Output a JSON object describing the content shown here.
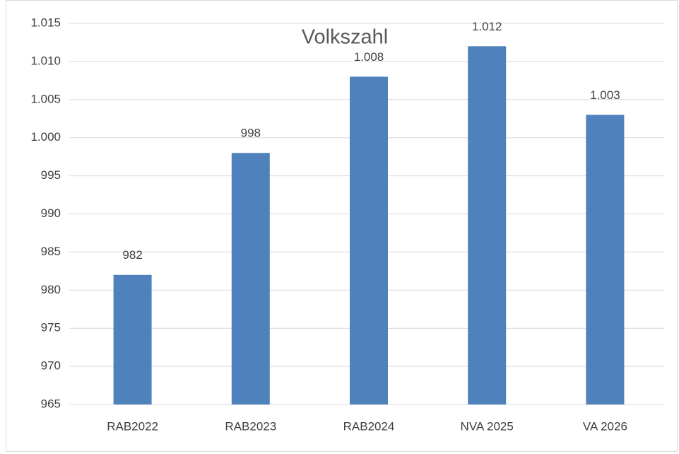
{
  "chart_data": {
    "type": "bar",
    "title": "Volkszahl",
    "categories": [
      "RAB2022",
      "RAB2023",
      "RAB2024",
      "NVA 2025",
      "VA 2026"
    ],
    "values": [
      982,
      998,
      1008,
      1012,
      1003
    ],
    "value_labels": [
      "982",
      "998",
      "1.008",
      "1.012",
      "1.003"
    ],
    "color": "#4f81bd",
    "ylim": [
      965,
      1015
    ],
    "yticks": [
      965,
      970,
      975,
      980,
      985,
      990,
      995,
      {
        "value": 1000,
        "label": "1.000"
      },
      {
        "value": 1005,
        "label": "1.005"
      },
      {
        "value": 1010,
        "label": "1.010"
      },
      {
        "value": 1015,
        "label": "1.015"
      }
    ],
    "grid": true
  }
}
